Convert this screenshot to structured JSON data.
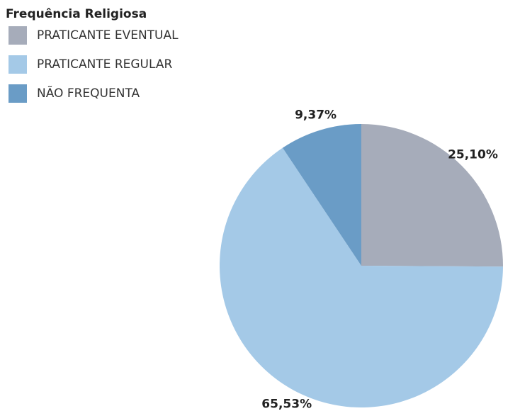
{
  "chart_data": {
    "type": "pie",
    "legend_title": "Frequência Religiosa",
    "categories": [
      "PRATICANTE EVENTUAL",
      "PRATICANTE REGULAR",
      "NÃO FREQUENTA"
    ],
    "values": [
      25.1,
      65.53,
      9.37
    ],
    "value_labels": [
      "25,10%",
      "65,53%",
      "9,37%"
    ],
    "colors": [
      "#a6acba",
      "#a4c9e7",
      "#6a9cc6"
    ],
    "legend": "top-left"
  }
}
